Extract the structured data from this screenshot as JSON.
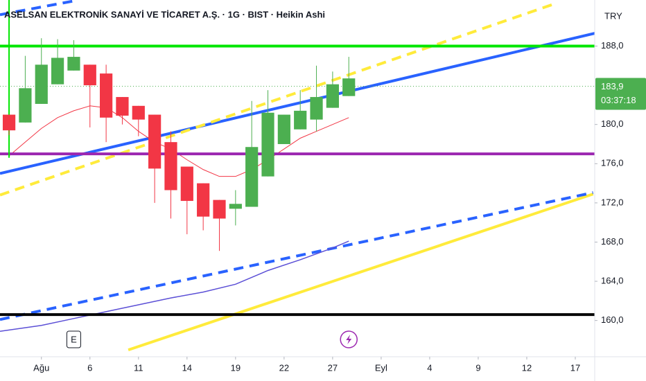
{
  "chart_data": {
    "type": "candlestick",
    "title": "ASELSAN ELEKTRONİK SANAYİ VE TİCARET A.Ş. · 1G · BIST · Heikin Ashi",
    "currency": "TRY",
    "x": [
      0,
      1,
      2,
      3,
      4,
      5,
      6,
      7,
      8,
      9,
      10,
      11,
      12,
      13,
      14,
      15,
      16,
      17,
      18,
      19,
      20,
      21
    ],
    "open": [
      181.0,
      180.2,
      182.1,
      184.1,
      185.5,
      186.1,
      185.2,
      182.8,
      181.9,
      181.0,
      178.2,
      175.7,
      174.0,
      172.3,
      171.4,
      171.6,
      174.7,
      178.0,
      179.5,
      180.5,
      181.7,
      182.9
    ],
    "high": [
      181.0,
      187.0,
      188.8,
      188.7,
      188.6,
      186.1,
      186.1,
      182.8,
      181.9,
      181.0,
      179.3,
      175.7,
      174.0,
      172.3,
      173.3,
      182.4,
      183.5,
      181.0,
      183.5,
      186.0,
      185.4,
      186.9
    ],
    "low": [
      178.9,
      180.2,
      182.1,
      184.1,
      185.5,
      179.7,
      178.2,
      180.0,
      178.8,
      172.0,
      170.4,
      168.8,
      169.2,
      167.1,
      169.7,
      171.6,
      174.7,
      178.0,
      179.5,
      179.3,
      181.7,
      182.9
    ],
    "close": [
      179.4,
      183.7,
      186.1,
      186.8,
      186.9,
      184.0,
      180.7,
      180.9,
      180.5,
      175.5,
      173.3,
      172.2,
      170.6,
      170.4,
      171.9,
      177.7,
      181.2,
      181.0,
      181.4,
      182.8,
      184.1,
      184.7
    ],
    "up_color": "#4caf50",
    "down_color": "#f23645",
    "xlim": [
      -0.56,
      36.2
    ],
    "ylim": [
      156.3,
      192.7
    ],
    "yticks": [
      {
        "value": 188,
        "label": "188,0"
      },
      {
        "value": 180,
        "label": "180,0"
      },
      {
        "value": 176,
        "label": "176,0"
      },
      {
        "value": 172,
        "label": "172,0"
      },
      {
        "value": 168,
        "label": "168,0"
      },
      {
        "value": 164,
        "label": "164,0"
      },
      {
        "value": 160,
        "label": "160,0"
      }
    ],
    "xticks": [
      {
        "value": 2,
        "label": "Ağu"
      },
      {
        "value": 5,
        "label": "6"
      },
      {
        "value": 8,
        "label": "11"
      },
      {
        "value": 11,
        "label": "14"
      },
      {
        "value": 14,
        "label": "19"
      },
      {
        "value": 17,
        "label": "22"
      },
      {
        "value": 20,
        "label": "27"
      },
      {
        "value": 23,
        "label": "Eyl"
      },
      {
        "value": 26,
        "label": "4"
      },
      {
        "value": 29,
        "label": "9"
      },
      {
        "value": 32,
        "label": "12"
      },
      {
        "value": 35,
        "label": "17"
      }
    ],
    "last_price": {
      "value": 183.9,
      "label": "183,9"
    },
    "countdown": "03:37:18",
    "horizontal_lines": [
      {
        "value": 188,
        "color": "#00e600"
      },
      {
        "value": 177.0,
        "color": "#9c27b0"
      },
      {
        "value": 160.6,
        "color": "#000000"
      }
    ],
    "vertical_lines": [
      {
        "x": 0,
        "from": 176.6,
        "color": "#00e600"
      }
    ],
    "lines": [
      {
        "color": "#2962ff",
        "style": "solid",
        "width": 4,
        "x": [
          -0.56,
          36.2
        ],
        "values": [
          175.0,
          189.3
        ]
      },
      {
        "color": "#ffeb3b",
        "style": "dashed",
        "width": 4,
        "x": [
          -0.56,
          33.7
        ],
        "values": [
          172.8,
          192.3
        ]
      },
      {
        "color": "#ffeb3b",
        "style": "solid",
        "width": 4,
        "x": [
          7.37,
          36.1
        ],
        "values": [
          157.0,
          172.9
        ]
      },
      {
        "color": "#2962ff",
        "style": "dashed",
        "width": 4,
        "x": [
          -0.56,
          36.1
        ],
        "values": [
          160.1,
          173.05
        ]
      },
      {
        "color": "#2962ff",
        "style": "dashed",
        "width": 4,
        "x": [
          -0.56,
          4.16
        ],
        "values": [
          191.2,
          192.65
        ]
      },
      {
        "color": "#f23645",
        "style": "solid",
        "width": 1,
        "x": [
          0,
          1,
          2,
          3,
          4,
          5,
          6,
          7,
          8,
          9,
          10,
          11,
          12,
          13,
          14,
          15,
          16,
          17,
          18,
          19,
          20,
          21
        ],
        "values": [
          176.8,
          178.2,
          179.6,
          180.7,
          181.4,
          181.9,
          181.7,
          180.7,
          179.3,
          178.2,
          177.5,
          176.4,
          175.4,
          174.7,
          174.7,
          175.4,
          176.4,
          177.5,
          178.6,
          179.3,
          180.0,
          180.7
        ]
      },
      {
        "color": "#5b4fd6",
        "style": "solid",
        "width": 1.5,
        "x": [
          -0.56,
          2,
          4,
          6,
          8,
          10,
          12,
          14,
          16,
          18,
          20,
          21
        ],
        "values": [
          158.9,
          159.5,
          160.2,
          160.9,
          161.6,
          162.3,
          162.9,
          163.7,
          165.1,
          166.2,
          167.4,
          168.1
        ]
      }
    ],
    "events": [
      {
        "x": 4,
        "label": "E"
      },
      {
        "x": 21,
        "icon": "lightning"
      }
    ]
  }
}
